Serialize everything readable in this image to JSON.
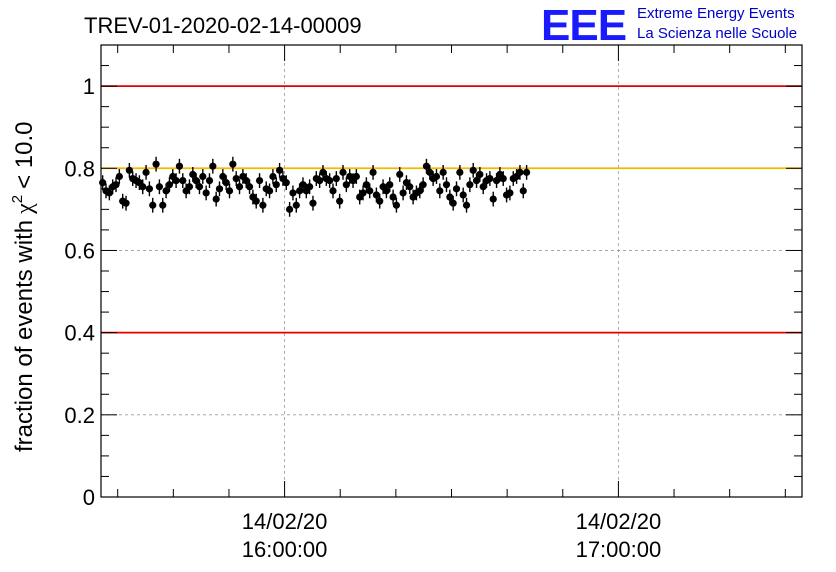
{
  "chart_data": {
    "type": "scatter",
    "title": "TREV-01-2020-02-14-00009",
    "ylabel": "fraction of events with",
    "ylabel_chi": "χ",
    "ylabel_sup": "2",
    "ylabel_tail": "< 10.0",
    "ylim": [
      0,
      1.1
    ],
    "yticks": [
      {
        "value": 0,
        "label": "0"
      },
      {
        "value": 0.2,
        "label": "0.2"
      },
      {
        "value": 0.4,
        "label": "0.4"
      },
      {
        "value": 0.6,
        "label": "0.6"
      },
      {
        "value": 0.8,
        "label": "0.8"
      },
      {
        "value": 1,
        "label": "1"
      }
    ],
    "xlim_minutes": [
      -33,
      93
    ],
    "xticks": [
      {
        "minute": 0,
        "date": "14/02/20",
        "time": "16:00:00"
      },
      {
        "minute": 60,
        "date": "14/02/20",
        "time": "17:00:00"
      }
    ],
    "grid": true,
    "reference_lines": [
      {
        "y": 1.0,
        "color": "#e00000"
      },
      {
        "y": 0.4,
        "color": "#e00000"
      },
      {
        "y": 0.8,
        "color": "#f5b800"
      }
    ],
    "marker_color": "#000000",
    "error": 0.018,
    "series": [
      {
        "x_start": -32.7,
        "x_step": 0.6,
        "values": [
          0.765,
          0.745,
          0.74,
          0.755,
          0.76,
          0.78,
          0.72,
          0.715,
          0.795,
          0.775,
          0.77,
          0.765,
          0.755,
          0.79,
          0.75,
          0.71,
          0.81,
          0.755,
          0.71,
          0.745,
          0.76,
          0.78,
          0.77,
          0.805,
          0.77,
          0.745,
          0.755,
          0.785,
          0.77,
          0.755,
          0.78,
          0.74,
          0.77,
          0.805,
          0.725,
          0.75,
          0.78,
          0.765,
          0.745,
          0.81,
          0.775,
          0.755,
          0.78,
          0.77,
          0.755,
          0.73,
          0.72,
          0.77,
          0.71,
          0.75,
          0.745,
          0.78,
          0.76,
          0.795,
          0.775,
          0.765,
          0.7,
          0.74,
          0.71,
          0.745,
          0.76,
          0.745,
          0.755,
          0.715,
          0.775,
          0.77,
          0.79,
          0.775,
          0.77,
          0.745,
          0.775,
          0.72,
          0.79,
          0.76,
          0.78,
          0.77,
          0.78,
          0.73,
          0.74,
          0.76,
          0.745,
          0.79,
          0.735,
          0.72,
          0.755,
          0.745,
          0.76,
          0.73,
          0.71,
          0.785,
          0.74,
          0.765,
          0.755,
          0.73,
          0.74,
          0.745,
          0.76,
          0.805,
          0.79,
          0.775,
          0.78,
          0.745,
          0.79,
          0.76,
          0.73,
          0.715,
          0.75,
          0.79,
          0.735,
          0.71,
          0.76,
          0.795,
          0.77,
          0.785,
          0.755,
          0.77,
          0.775,
          0.725,
          0.77,
          0.785,
          0.775,
          0.735,
          0.74,
          0.775,
          0.78,
          0.79,
          0.745,
          0.79
        ]
      }
    ]
  },
  "logo": {
    "mark": "EEE",
    "line1": "Extreme Energy Events",
    "line2": "La Scienza nelle Scuole",
    "color": "#1a1aff"
  }
}
